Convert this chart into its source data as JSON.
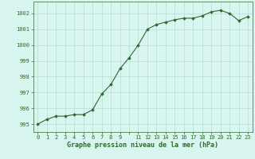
{
  "x": [
    0,
    1,
    2,
    3,
    4,
    5,
    6,
    7,
    8,
    9,
    10,
    11,
    12,
    13,
    14,
    15,
    16,
    17,
    18,
    19,
    20,
    21,
    22,
    23
  ],
  "y": [
    995.0,
    995.3,
    995.5,
    995.5,
    995.6,
    995.6,
    995.9,
    996.9,
    997.5,
    998.5,
    999.2,
    1000.0,
    1001.0,
    1001.3,
    1001.45,
    1001.6,
    1001.7,
    1001.7,
    1001.85,
    1002.1,
    1002.2,
    1002.0,
    1001.55,
    1001.8
  ],
  "line_color": "#2d6a2d",
  "marker": "D",
  "marker_size": 1.8,
  "bg_color": "#d8f5f0",
  "grid_color": "#aad8d0",
  "xlabel": "Graphe pression niveau de la mer (hPa)",
  "xlabel_fontsize": 6.0,
  "xlabel_bold": true,
  "xtick_labels": [
    "0",
    "1",
    "2",
    "3",
    "4",
    "5",
    "6",
    "7",
    "8",
    "9",
    "",
    "11",
    "12",
    "13",
    "14",
    "15",
    "16",
    "17",
    "18",
    "19",
    "20",
    "21",
    "22",
    "23"
  ],
  "ytick_labels": [
    "995",
    "996",
    "997",
    "998",
    "999",
    "1000",
    "1001",
    "1002"
  ],
  "yticks": [
    995,
    996,
    997,
    998,
    999,
    1000,
    1001,
    1002
  ],
  "ylim": [
    994.5,
    1002.75
  ],
  "xlim": [
    -0.5,
    23.5
  ],
  "tick_fontsize": 5.0,
  "linewidth": 0.8
}
